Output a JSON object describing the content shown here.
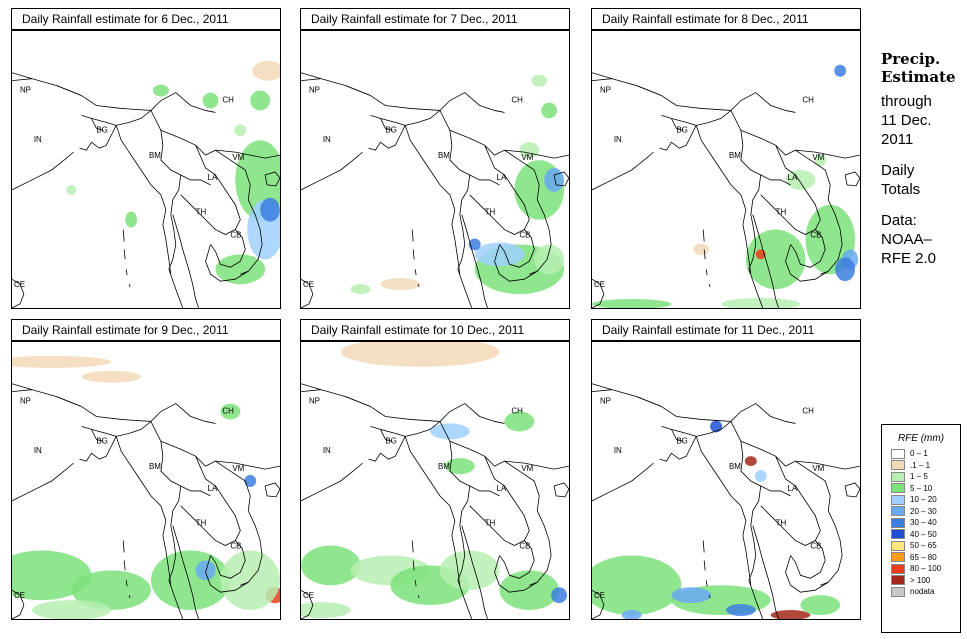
{
  "panels": [
    {
      "title": "Daily Rainfall estimate for  6 Dec., 2011"
    },
    {
      "title": "Daily Rainfall estimate for  7 Dec., 2011"
    },
    {
      "title": "Daily Rainfall estimate for  8 Dec., 2011"
    },
    {
      "title": "Daily Rainfall estimate for  9 Dec., 2011"
    },
    {
      "title": "Daily Rainfall estimate for  10 Dec., 2011"
    },
    {
      "title": "Daily Rainfall estimate for  11 Dec., 2011"
    }
  ],
  "country_labels": [
    "NP",
    "IN",
    "BG",
    "BM",
    "CH",
    "VM",
    "LA",
    "TH",
    "CB",
    "CE"
  ],
  "side": {
    "title_line1": "Precip.",
    "title_line2": "Estimate",
    "through": "through",
    "date_line1": "11 Dec.",
    "date_line2": "2011",
    "daily_line1": "Daily",
    "daily_line2": "Totals",
    "data_line1": "Data:",
    "data_line2": "NOAA–",
    "data_line3": "RFE 2.0"
  },
  "legend": {
    "title": "RFE (mm)",
    "items": [
      {
        "label": "0 – 1",
        "color": "#ffffff"
      },
      {
        "label": ".1 – 1",
        "color": "#f2d9b8"
      },
      {
        "label": "1 – 5",
        "color": "#b7efb1"
      },
      {
        "label": "5 – 10",
        "color": "#7ce27a"
      },
      {
        "label": "10 – 20",
        "color": "#9fd0ff"
      },
      {
        "label": "20 – 30",
        "color": "#6aa9f5"
      },
      {
        "label": "30 – 40",
        "color": "#3c7fe0"
      },
      {
        "label": "40 – 50",
        "color": "#1f4fd0"
      },
      {
        "label": "50 – 65",
        "color": "#ffe680"
      },
      {
        "label": "65 – 80",
        "color": "#ff9a1a"
      },
      {
        "label": "80 – 100",
        "color": "#e83c1a"
      },
      {
        "label": "> 100",
        "color": "#a3281a"
      },
      {
        "label": "nodata",
        "color": "#c8c8c8"
      }
    ]
  }
}
